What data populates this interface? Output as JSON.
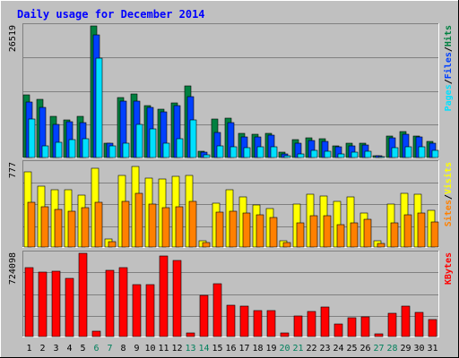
{
  "title": "Daily usage for December 2014",
  "colors": {
    "background": "#c0c0c0",
    "title_text": "#0000ff",
    "hits": "#008040",
    "files": "#0040ff",
    "pages": "#00e0ff",
    "visits": "#ffff00",
    "sites": "#ff8000",
    "kbytes": "#ff0000",
    "weekend_label": "#00805c",
    "weekday_label": "#000000"
  },
  "chart_data": [
    {
      "type": "bar",
      "panel": "hits-files-pages",
      "ymax_label": "26519",
      "ylim": [
        0,
        26519
      ],
      "legend": [
        {
          "text": "Pages",
          "color": "#00e0ff"
        },
        {
          "text": "Files",
          "color": "#0040ff"
        },
        {
          "text": "Hits",
          "color": "#008040"
        }
      ],
      "separator": "/",
      "categories": [
        "1",
        "2",
        "3",
        "4",
        "5",
        "6",
        "7",
        "8",
        "9",
        "10",
        "11",
        "12",
        "13",
        "14",
        "15",
        "16",
        "17",
        "18",
        "19",
        "20",
        "21",
        "22",
        "23",
        "24",
        "25",
        "26",
        "27",
        "28",
        "29",
        "30",
        "31"
      ],
      "series": [
        {
          "name": "Hits",
          "values": [
            12700,
            11800,
            8300,
            7500,
            8300,
            26500,
            2900,
            12000,
            12800,
            10400,
            9800,
            11000,
            14400,
            1200,
            7800,
            7900,
            4900,
            4700,
            4800,
            1000,
            3600,
            4000,
            3800,
            2300,
            2800,
            2800,
            400,
            4300,
            5300,
            4400,
            3300
          ]
        },
        {
          "name": "Files",
          "values": [
            11200,
            10100,
            6600,
            7300,
            7100,
            24800,
            2800,
            11400,
            11300,
            10100,
            9200,
            10400,
            12300,
            1100,
            5000,
            7000,
            4200,
            4100,
            4500,
            800,
            2900,
            3500,
            3200,
            2100,
            2300,
            2600,
            300,
            3900,
            4700,
            4100,
            2900
          ]
        },
        {
          "name": "Pages",
          "values": [
            7700,
            2400,
            3000,
            3600,
            3800,
            20000,
            2400,
            2800,
            6600,
            5700,
            2800,
            3800,
            7600,
            600,
            2300,
            2200,
            2000,
            2100,
            2200,
            400,
            800,
            1400,
            1300,
            800,
            1000,
            1200,
            200,
            1900,
            2200,
            2200,
            1500
          ]
        }
      ]
    },
    {
      "type": "bar",
      "panel": "visits-sites",
      "ymax_label": "777",
      "ylim": [
        0,
        777
      ],
      "legend": [
        {
          "text": "Sites",
          "color": "#ff8000"
        },
        {
          "text": "Visits",
          "color": "#ffff00"
        }
      ],
      "separator": "/",
      "categories": [
        "1",
        "2",
        "3",
        "4",
        "5",
        "6",
        "7",
        "8",
        "9",
        "10",
        "11",
        "12",
        "13",
        "14",
        "15",
        "16",
        "17",
        "18",
        "19",
        "20",
        "21",
        "22",
        "23",
        "24",
        "25",
        "26",
        "27",
        "28",
        "29",
        "30",
        "31"
      ],
      "series": [
        {
          "name": "Visits",
          "values": [
            695,
            565,
            525,
            525,
            483,
            724,
            75,
            665,
            746,
            640,
            626,
            655,
            665,
            54,
            403,
            527,
            463,
            389,
            356,
            54,
            400,
            485,
            475,
            422,
            461,
            311,
            54,
            400,
            498,
            490,
            342
          ]
        },
        {
          "name": "Sites",
          "values": [
            410,
            370,
            350,
            330,
            360,
            410,
            50,
            420,
            500,
            400,
            360,
            370,
            420,
            40,
            320,
            330,
            310,
            300,
            270,
            40,
            220,
            290,
            290,
            210,
            220,
            260,
            35,
            220,
            300,
            310,
            230
          ]
        }
      ]
    },
    {
      "type": "bar",
      "panel": "kbytes",
      "ymax_label": "724098",
      "ylim": [
        0,
        724098
      ],
      "legend": [
        {
          "text": "KBytes",
          "color": "#ff0000"
        }
      ],
      "categories": [
        "1",
        "2",
        "3",
        "4",
        "5",
        "6",
        "7",
        "8",
        "9",
        "10",
        "11",
        "12",
        "13",
        "14",
        "15",
        "16",
        "17",
        "18",
        "19",
        "20",
        "21",
        "22",
        "23",
        "24",
        "25",
        "26",
        "27",
        "28",
        "29",
        "30",
        "31"
      ],
      "series": [
        {
          "name": "KBytes",
          "values": [
            600000,
            560000,
            571000,
            503000,
            724000,
            50000,
            576000,
            597000,
            452000,
            455000,
            700000,
            665000,
            33000,
            355000,
            463000,
            274000,
            261000,
            229000,
            224000,
            30000,
            182000,
            220000,
            259000,
            110000,
            164000,
            170000,
            20000,
            200000,
            262000,
            212000,
            147000
          ]
        }
      ]
    }
  ],
  "x_labels": [
    {
      "text": "1",
      "weekend": false
    },
    {
      "text": "2",
      "weekend": false
    },
    {
      "text": "3",
      "weekend": false
    },
    {
      "text": "4",
      "weekend": false
    },
    {
      "text": "5",
      "weekend": false
    },
    {
      "text": "6",
      "weekend": true
    },
    {
      "text": "7",
      "weekend": true
    },
    {
      "text": "8",
      "weekend": false
    },
    {
      "text": "9",
      "weekend": false
    },
    {
      "text": "10",
      "weekend": false
    },
    {
      "text": "11",
      "weekend": false
    },
    {
      "text": "12",
      "weekend": false
    },
    {
      "text": "13",
      "weekend": true
    },
    {
      "text": "14",
      "weekend": true
    },
    {
      "text": "15",
      "weekend": false
    },
    {
      "text": "16",
      "weekend": false
    },
    {
      "text": "17",
      "weekend": false
    },
    {
      "text": "18",
      "weekend": false
    },
    {
      "text": "19",
      "weekend": false
    },
    {
      "text": "20",
      "weekend": true
    },
    {
      "text": "21",
      "weekend": true
    },
    {
      "text": "22",
      "weekend": false
    },
    {
      "text": "23",
      "weekend": false
    },
    {
      "text": "24",
      "weekend": false
    },
    {
      "text": "25",
      "weekend": false
    },
    {
      "text": "26",
      "weekend": false
    },
    {
      "text": "27",
      "weekend": true
    },
    {
      "text": "28",
      "weekend": true
    },
    {
      "text": "29",
      "weekend": false
    },
    {
      "text": "30",
      "weekend": false
    },
    {
      "text": "31",
      "weekend": false
    }
  ]
}
